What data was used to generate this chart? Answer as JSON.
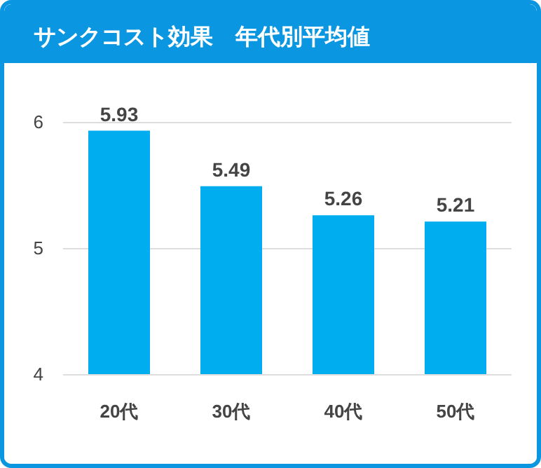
{
  "chart_data": {
    "type": "bar",
    "title": "サンクコスト効果　年代別平均値",
    "categories": [
      "20代",
      "30代",
      "40代",
      "50代"
    ],
    "values": [
      5.93,
      5.49,
      5.26,
      5.21
    ],
    "color": "#00aeef",
    "ylim": [
      4,
      6
    ],
    "yticks": [
      4,
      5,
      6
    ],
    "grid": "y",
    "data_labels": true
  }
}
